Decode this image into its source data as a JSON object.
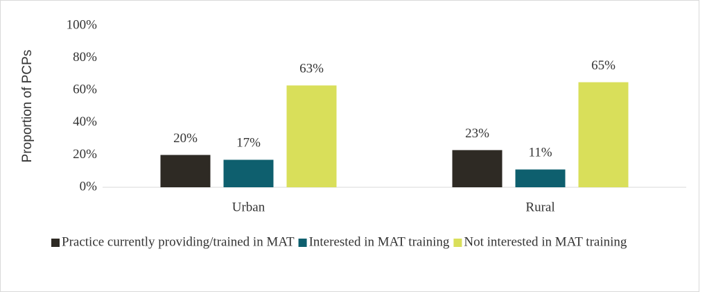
{
  "chart_data": {
    "type": "bar",
    "y_label": "Proportion of PCPs",
    "categories": [
      "Urban",
      "Rural"
    ],
    "series": [
      {
        "name": "Practice currently providing/trained in MAT",
        "color": "#2e2a24",
        "values": [
          20,
          23
        ],
        "value_labels": [
          "20%",
          "23%"
        ]
      },
      {
        "name": "Interested in MAT training",
        "color": "#0e5f6e",
        "values": [
          17,
          11
        ],
        "value_labels": [
          "17%",
          "11%"
        ]
      },
      {
        "name": "Not interested in MAT training",
        "color": "#d9df5a",
        "values": [
          63,
          65
        ],
        "value_labels": [
          "63%",
          "65%"
        ]
      }
    ],
    "ylim": [
      0,
      100
    ],
    "yticks": [
      {
        "value": 0,
        "label": "0%"
      },
      {
        "value": 20,
        "label": "20%"
      },
      {
        "value": 40,
        "label": "40%"
      },
      {
        "value": 60,
        "label": "60%"
      },
      {
        "value": 80,
        "label": "80%"
      },
      {
        "value": 100,
        "label": "100%"
      }
    ],
    "grid": false,
    "legend": "bottom"
  }
}
